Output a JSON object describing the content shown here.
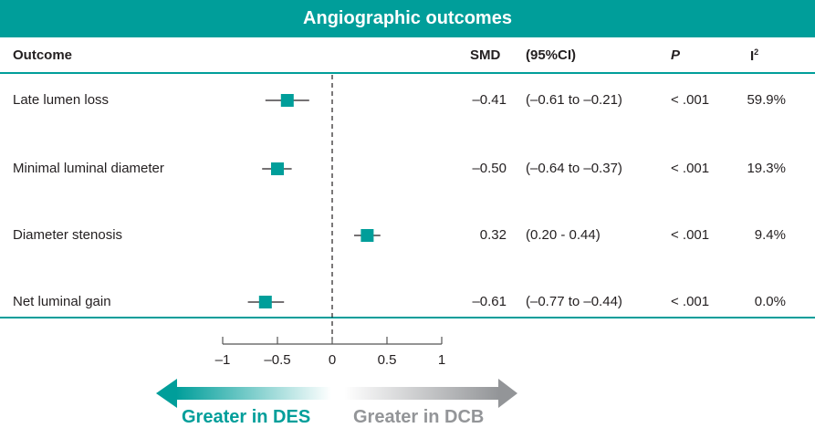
{
  "title": "Angiographic outcomes",
  "columns": {
    "outcome": "Outcome",
    "smd": "SMD",
    "ci": "(95%CI)",
    "p": "P",
    "i2": "I",
    "i2_sup": "2"
  },
  "chart_data": {
    "type": "forest",
    "title": "Angiographic outcomes",
    "xlim": [
      -1,
      1
    ],
    "xticks": [
      -1,
      -0.5,
      0,
      0.5,
      1
    ],
    "xtick_labels": [
      "–1",
      "–0.5",
      "0",
      "0.5",
      "1"
    ],
    "reference_line": 0,
    "rows": [
      {
        "outcome": "Late lumen loss",
        "smd": -0.41,
        "lo": -0.61,
        "hi": -0.21,
        "smd_text": "–0.41",
        "ci_text": "(–0.61 to –0.21)",
        "p": "< .001",
        "i2": "59.9%"
      },
      {
        "outcome": "Minimal luminal diameter",
        "smd": -0.5,
        "lo": -0.64,
        "hi": -0.37,
        "smd_text": "–0.50",
        "ci_text": "(–0.64 to –0.37)",
        "p": "< .001",
        "i2": "19.3%"
      },
      {
        "outcome": "Diameter stenosis",
        "smd": 0.32,
        "lo": 0.2,
        "hi": 0.44,
        "smd_text": "0.32",
        "ci_text": "(0.20 - 0.44)",
        "p": "< .001",
        "i2": "9.4%"
      },
      {
        "outcome": "Net luminal gain",
        "smd": -0.61,
        "lo": -0.77,
        "hi": -0.44,
        "smd_text": "–0.61",
        "ci_text": "(–0.77 to –0.44)",
        "p": "< .001",
        "i2": "0.0%"
      }
    ],
    "direction_labels": {
      "left": "Greater in DES",
      "right": "Greater in DCB"
    }
  },
  "colors": {
    "accent": "#009e9a",
    "gray": "#939598"
  }
}
